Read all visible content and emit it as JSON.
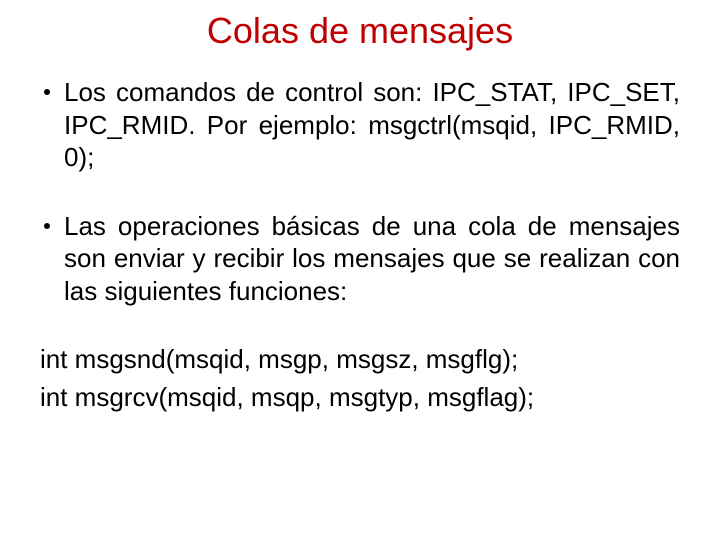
{
  "title": {
    "text": "Colas de mensajes",
    "color": "#c00000",
    "fontsize": 36
  },
  "body": {
    "fontsize": 26,
    "text_color": "#000000",
    "bullets": [
      "Los comandos de control son: IPC_STAT, IPC_SET, IPC_RMID. Por ejemplo: msgctrl(msqid, IPC_RMID, 0);",
      "Las operaciones básicas de una cola de mensajes son enviar y recibir los mensajes que se realizan con las siguientes funciones:"
    ],
    "plain_lines": [
      "int msgsnd(msqid, msgp, msgsz, msgflg);",
      "int msgrcv(msqid, msqp, msgtyp, msgflag);"
    ]
  },
  "background_color": "#ffffff"
}
